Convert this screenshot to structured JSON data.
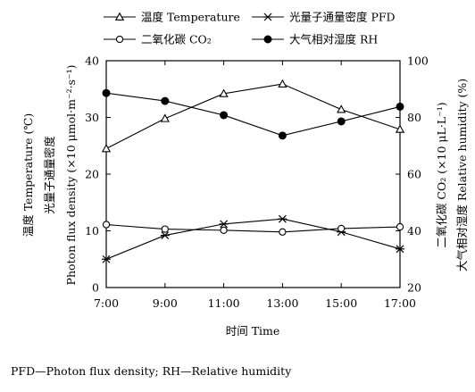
{
  "chart_data": {
    "type": "line",
    "title": "",
    "xlabel": "时间 Time",
    "categories": [
      "7:00",
      "9:00",
      "11:00",
      "13:00",
      "15:00",
      "17:00"
    ],
    "left_axis": {
      "label_line1": "温度 Temperature (℃)",
      "label_line2": "光量子通量密度",
      "label_line3": "Photon flux density (×10 μmol·m⁻²·s⁻¹)",
      "ylim": [
        0,
        40
      ],
      "ticks": [
        "0",
        "10",
        "20",
        "30",
        "40"
      ]
    },
    "right_axis": {
      "label_line1": "二氧化碳 CO₂ (×10 μL·L⁻¹)",
      "label_line2": "大气相对湿度 Relative humidity (%)",
      "ylim": [
        20,
        100
      ],
      "ticks": [
        "20",
        "40",
        "60",
        "80",
        "100"
      ]
    },
    "series": [
      {
        "name": "温度 Temperature",
        "axis": "left",
        "marker": "triangle",
        "values": [
          24.5,
          29.8,
          34.2,
          35.9,
          31.4,
          27.9
        ]
      },
      {
        "name": "光量子通量密度 PFD",
        "axis": "left",
        "marker": "star",
        "values": [
          5.0,
          9.2,
          11.2,
          12.1,
          9.8,
          6.8
        ]
      },
      {
        "name": "二氧化碳 CO₂",
        "axis": "right",
        "marker": "open-circle",
        "values": [
          42.2,
          40.6,
          40.2,
          39.6,
          40.8,
          41.4
        ]
      },
      {
        "name": "大气相对湿度 RH",
        "axis": "right",
        "marker": "filled-circle",
        "values": [
          88.6,
          85.8,
          80.8,
          73.6,
          78.6,
          83.8
        ]
      }
    ],
    "grid": false,
    "legend_position": "top"
  },
  "footnote": "PFD—Photon flux density; RH—Relative humidity"
}
